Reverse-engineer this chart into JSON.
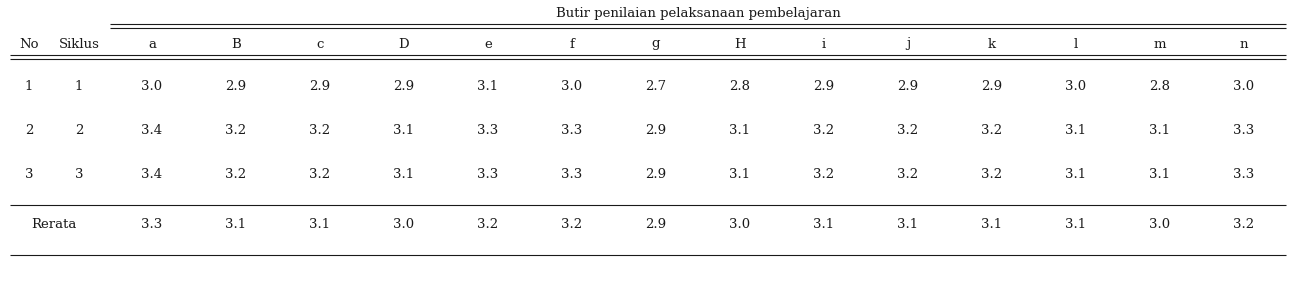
{
  "header_title": "Butir penilaian pelaksanaan pembelajaran",
  "col_headers": [
    "No",
    "Siklus",
    "a",
    "B",
    "c",
    "D",
    "e",
    "f",
    "g",
    "H",
    "i",
    "j",
    "k",
    "l",
    "m",
    "n"
  ],
  "rows": [
    [
      "1",
      "1",
      "3.0",
      "2.9",
      "2.9",
      "2.9",
      "3.1",
      "3.0",
      "2.7",
      "2.8",
      "2.9",
      "2.9",
      "2.9",
      "3.0",
      "2.8",
      "3.0"
    ],
    [
      "2",
      "2",
      "3.4",
      "3.2",
      "3.2",
      "3.1",
      "3.3",
      "3.3",
      "2.9",
      "3.1",
      "3.2",
      "3.2",
      "3.2",
      "3.1",
      "3.1",
      "3.3"
    ],
    [
      "3",
      "3",
      "3.4",
      "3.2",
      "3.2",
      "3.1",
      "3.3",
      "3.3",
      "2.9",
      "3.1",
      "3.2",
      "3.2",
      "3.2",
      "3.1",
      "3.1",
      "3.3"
    ]
  ],
  "rerata_label": "Rerata",
  "rerata_data": [
    "3.3",
    "3.1",
    "3.1",
    "3.0",
    "3.2",
    "3.2",
    "2.9",
    "3.0",
    "3.1",
    "3.1",
    "3.1",
    "3.1",
    "3.0",
    "3.2"
  ],
  "bg_color": "#ffffff",
  "text_color": "#1a1a1a",
  "font_size": 9.5,
  "title_font_size": 9.5
}
